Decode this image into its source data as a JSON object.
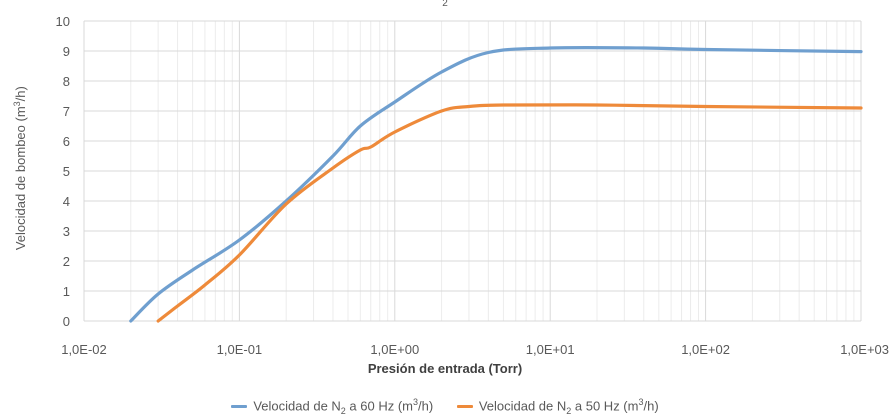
{
  "chart_data": {
    "type": "line",
    "title_fragment": "2",
    "xlabel": "Presión de entrada (Torr)",
    "ylabel_base": "Velocidad de bombeo (m",
    "ylabel_sup": "3",
    "ylabel_end": "/h)",
    "x_scale": "log",
    "xlim": [
      0.01,
      1000
    ],
    "ylim": [
      0,
      10
    ],
    "grid": true,
    "legend_position": "bottom",
    "x_tick_labels": [
      "1,0E-02",
      "1,0E-01",
      "1,0E+00",
      "1,0E+01",
      "1,0E+02",
      "1,0E+03"
    ],
    "x_tick_values": [
      0.01,
      0.1,
      1,
      10,
      100,
      1000
    ],
    "y_tick_labels": [
      "0",
      "1",
      "2",
      "3",
      "4",
      "5",
      "6",
      "7",
      "8",
      "9",
      "10"
    ],
    "y_tick_values": [
      0,
      1,
      2,
      3,
      4,
      5,
      6,
      7,
      8,
      9,
      10
    ],
    "series": [
      {
        "name": "Velocidad de N2 a 60 Hz (m3/h)",
        "legend_parts": [
          "Velocidad de N",
          "2",
          " a 60 Hz (m",
          "3",
          "/h)"
        ],
        "color": "#6f9fcf",
        "x": [
          0.02,
          0.03,
          0.05,
          0.1,
          0.2,
          0.4,
          0.6,
          1,
          2,
          4,
          10,
          40,
          100,
          1000
        ],
        "y": [
          0,
          0.9,
          1.7,
          2.7,
          4.0,
          5.5,
          6.5,
          7.3,
          8.3,
          8.95,
          9.1,
          9.1,
          9.05,
          8.98
        ]
      },
      {
        "name": "Velocidad de N2 a 50 Hz (m3/h)",
        "legend_parts": [
          "Velocidad de N",
          "2",
          " a 50 Hz (m",
          "3",
          "/h)"
        ],
        "color": "#ee8a3a",
        "x": [
          0.03,
          0.04,
          0.06,
          0.1,
          0.2,
          0.4,
          0.6,
          0.7,
          1,
          2,
          3,
          5,
          20,
          100,
          1000
        ],
        "y": [
          0,
          0.5,
          1.2,
          2.2,
          3.9,
          5.1,
          5.7,
          5.8,
          6.3,
          7.0,
          7.15,
          7.2,
          7.2,
          7.15,
          7.1
        ]
      }
    ]
  }
}
